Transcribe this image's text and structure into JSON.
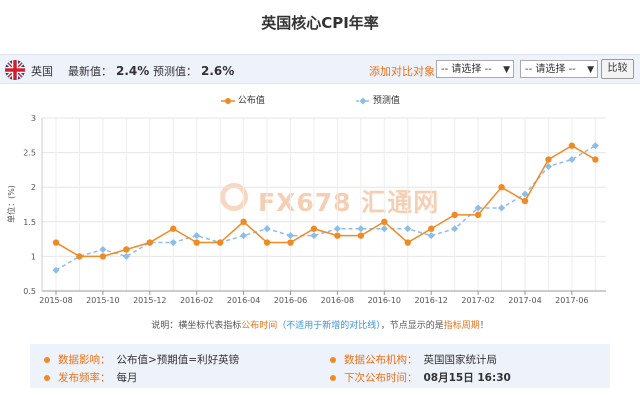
{
  "page": {
    "title": "英国核心CPI年率"
  },
  "topbar": {
    "country": "英国",
    "latest_label": "最新值：",
    "latest_value": "2.4%",
    "forecast_label": "预测值：",
    "forecast_value": "2.6%",
    "compare_label": "添加对比对象：",
    "select1": "-- 请选择 --",
    "select2": "-- 请选择 --",
    "compare_button": "比较"
  },
  "watermark": "FX678 汇通网",
  "explain": {
    "prefix": "说明：横坐标代表指标",
    "hl1": "公布时间",
    "hl2": "（不适用于新增的对比线）",
    "mid": "，节点显示的是",
    "hl3": "指标周期",
    "suffix": "！"
  },
  "info": {
    "impact_label": "数据影响：",
    "impact_value": "公布值>预期值=利好英镑",
    "agency_label": "数据公布机构：",
    "agency_value": "英国国家统计局",
    "freq_label": "发布频率：",
    "freq_value": "每月",
    "next_label": "下次公布时间：",
    "next_value": "08月15日 16:30"
  },
  "colors": {
    "actual": "#f08a24",
    "forecast": "#8dbde8",
    "accent": "#e8731a"
  },
  "chart_data": {
    "type": "line",
    "title": "",
    "ylabel": "单位：(%)",
    "xlabel": "",
    "ylim": [
      0.5,
      3
    ],
    "yticks": [
      "0.5",
      "1",
      "1.5",
      "2",
      "2.5",
      "3"
    ],
    "xticks": [
      "2015-08",
      "2015-10",
      "2015-12",
      "2016-02",
      "2016-04",
      "2016-06",
      "2016-08",
      "2016-10",
      "2016-12",
      "2017-02",
      "2017-04",
      "2017-06"
    ],
    "x": [
      "2015-08",
      "2015-09",
      "2015-10",
      "2015-11",
      "2015-12",
      "2016-01",
      "2016-02",
      "2016-03",
      "2016-04",
      "2016-05",
      "2016-06",
      "2016-07",
      "2016-08",
      "2016-09",
      "2016-10",
      "2016-11",
      "2016-12",
      "2017-01",
      "2017-02",
      "2017-03",
      "2017-04",
      "2017-05",
      "2017-06",
      "2017-07"
    ],
    "series": [
      {
        "name": "公布值",
        "values": [
          1.2,
          1.0,
          1.0,
          1.1,
          1.2,
          1.4,
          1.2,
          1.2,
          1.5,
          1.2,
          1.2,
          1.4,
          1.3,
          1.3,
          1.5,
          1.2,
          1.4,
          1.6,
          1.6,
          2.0,
          1.8,
          2.4,
          2.6,
          2.4
        ]
      },
      {
        "name": "预测值",
        "values": [
          0.8,
          1.0,
          1.1,
          1.0,
          1.2,
          1.2,
          1.3,
          1.2,
          1.3,
          1.4,
          1.3,
          1.3,
          1.4,
          1.4,
          1.4,
          1.4,
          1.3,
          1.4,
          1.7,
          1.7,
          1.9,
          2.3,
          2.4,
          2.6
        ]
      }
    ],
    "grid": true,
    "legend": "top"
  }
}
